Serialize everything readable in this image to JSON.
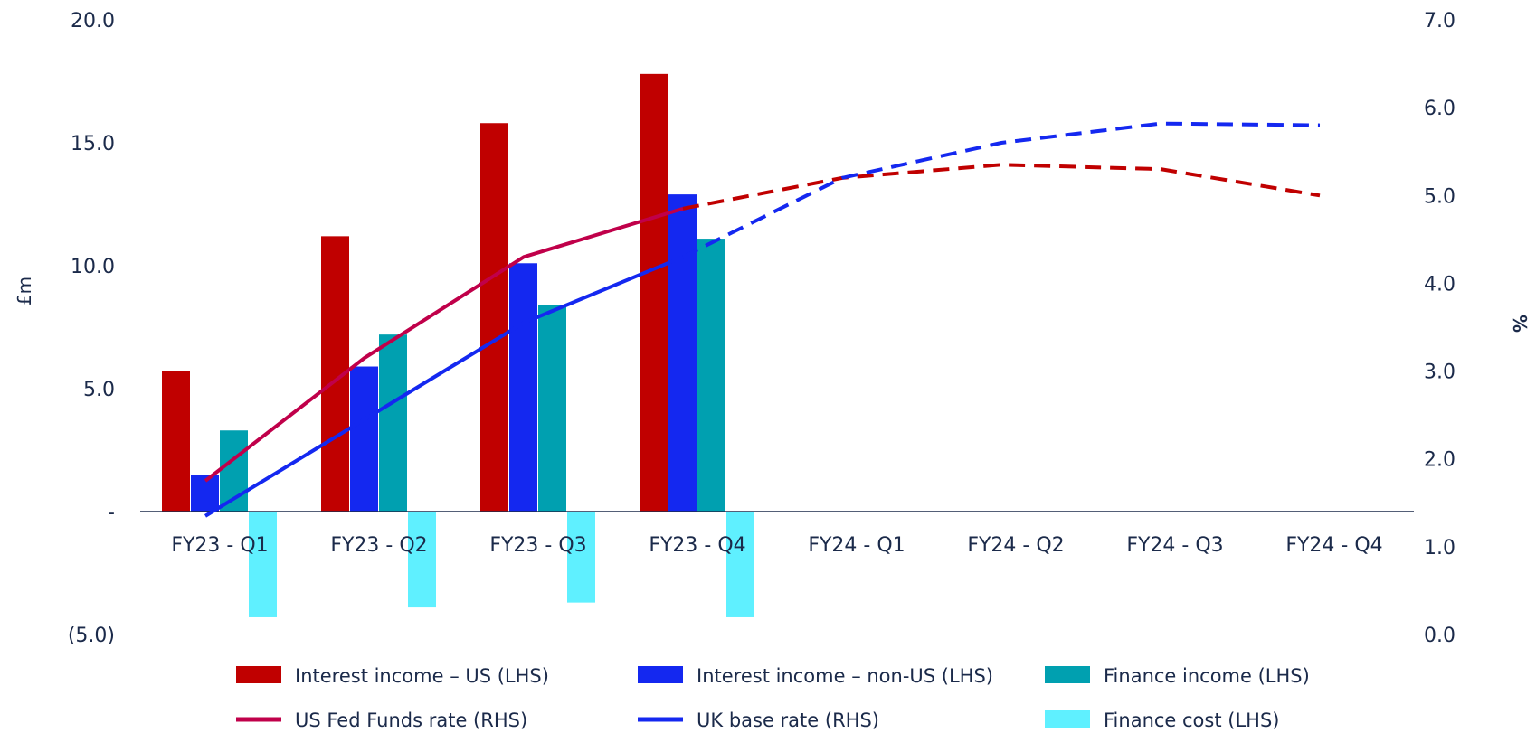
{
  "chart_data": {
    "type": "bar",
    "categories": [
      "FY23 - Q1",
      "FY23 - Q2",
      "FY23 - Q3",
      "FY23 - Q4",
      "FY24 - Q1",
      "FY24 - Q2",
      "FY24 - Q3",
      "FY24 - Q4"
    ],
    "left_axis": {
      "label": "£m",
      "ylim": [
        -5,
        20
      ],
      "ticks": [
        {
          "value": 20,
          "label": "20.0"
        },
        {
          "value": 15,
          "label": "15.0"
        },
        {
          "value": 10,
          "label": "10.0"
        },
        {
          "value": 5,
          "label": "5.0"
        },
        {
          "value": 0,
          "label": "-"
        },
        {
          "value": -5,
          "label": "(5.0)"
        }
      ]
    },
    "right_axis": {
      "label": "%",
      "ylim": [
        0,
        7
      ],
      "ticks": [
        {
          "value": 7,
          "label": "7.0"
        },
        {
          "value": 6,
          "label": "6.0"
        },
        {
          "value": 5,
          "label": "5.0"
        },
        {
          "value": 4,
          "label": "4.0"
        },
        {
          "value": 3,
          "label": "3.0"
        },
        {
          "value": 2,
          "label": "2.0"
        },
        {
          "value": 1,
          "label": "1.0"
        },
        {
          "value": 0,
          "label": "0.0"
        }
      ]
    },
    "bar_series": [
      {
        "name": "Interest income – US (LHS)",
        "color": "#c00000",
        "values": [
          5.7,
          11.2,
          15.8,
          17.8,
          null,
          null,
          null,
          null
        ]
      },
      {
        "name": "Interest income – non-US (LHS)",
        "color": "#1428f0",
        "values": [
          1.5,
          5.9,
          10.1,
          12.9,
          null,
          null,
          null,
          null
        ]
      },
      {
        "name": "Finance income (LHS)",
        "color": "#00a0b0",
        "values": [
          3.3,
          7.2,
          8.4,
          11.1,
          null,
          null,
          null,
          null
        ]
      },
      {
        "name": "Finance cost (LHS)",
        "color": "#5ff0ff",
        "values": [
          -4.3,
          -3.9,
          -3.7,
          -4.3,
          null,
          null,
          null,
          null
        ]
      }
    ],
    "line_series": [
      {
        "name": "US Fed Funds rate (RHS)",
        "color": "#c0004a",
        "dashed_color": "#c00000",
        "actual": [
          1.75,
          3.15,
          4.3,
          4.85
        ],
        "forecast": [
          4.85,
          5.2,
          5.35,
          5.3,
          5.0
        ]
      },
      {
        "name": "UK base rate (RHS)",
        "color": "#1428f0",
        "dashed_color": "#1428f0",
        "actual": [
          1.35,
          2.45,
          3.55,
          4.3
        ],
        "forecast": [
          4.3,
          5.2,
          5.6,
          5.82,
          5.8
        ]
      }
    ],
    "legend": [
      {
        "label": "Interest income – US (LHS)",
        "kind": "bar",
        "color": "#c00000"
      },
      {
        "label": "Interest income – non-US (LHS)",
        "kind": "bar",
        "color": "#1428f0"
      },
      {
        "label": "Finance income (LHS)",
        "kind": "bar",
        "color": "#00a0b0"
      },
      {
        "label": "US Fed Funds rate (RHS)",
        "kind": "line",
        "color": "#c0004a"
      },
      {
        "label": "UK base rate (RHS)",
        "kind": "line",
        "color": "#1428f0"
      },
      {
        "label": "Finance cost (LHS)",
        "kind": "bar",
        "color": "#5ff0ff"
      }
    ],
    "legend_placement": "bottom",
    "grid": false
  }
}
